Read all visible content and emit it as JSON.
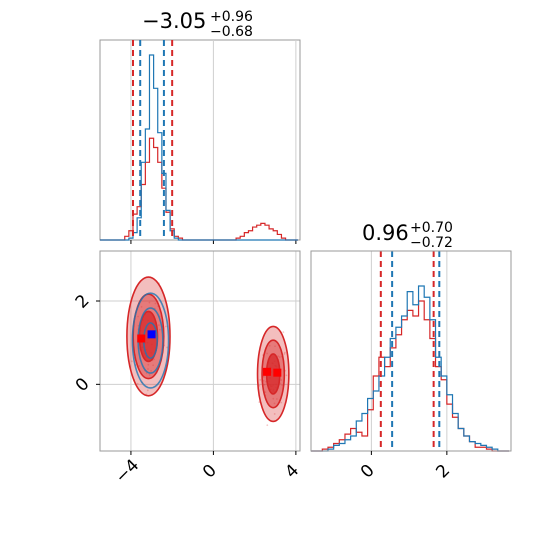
{
  "chart_data": {
    "type": "corner",
    "colors": {
      "red": "#d62728",
      "blue": "#1f77b4"
    },
    "grid": true,
    "titles": [
      {
        "param": "p1",
        "median": "−3.05",
        "plus": "+0.96",
        "minus": "−0.68"
      },
      {
        "param": "p2",
        "median": "0.96",
        "plus": "+0.70",
        "minus": "−0.72"
      }
    ],
    "panels": {
      "hist1": {
        "type": "histogram",
        "xlim": [
          -5.5,
          4.2
        ],
        "quantile_lines_red": [
          -3.9,
          -2.0
        ],
        "quantile_lines_blue": [
          -3.55,
          -2.4
        ],
        "red_series": {
          "bins": [
            -5.5,
            -5.3,
            -5.1,
            -4.9,
            -4.7,
            -4.5,
            -4.3,
            -4.1,
            -3.9,
            -3.7,
            -3.5,
            -3.3,
            -3.1,
            -2.9,
            -2.7,
            -2.5,
            -2.3,
            -2.1,
            -1.9,
            -1.7,
            -1.5,
            -1.3,
            -1.1,
            -0.9,
            -0.7,
            -0.5,
            -0.3,
            -0.1,
            0.1,
            0.3,
            0.5,
            0.7,
            0.9,
            1.1,
            1.3,
            1.5,
            1.7,
            1.9,
            2.1,
            2.3,
            2.5,
            2.7,
            2.9,
            3.1,
            3.3,
            3.5,
            3.7,
            3.9,
            4.1
          ],
          "counts": [
            0,
            0,
            0,
            0,
            0,
            0,
            0.02,
            0.05,
            0.14,
            0.18,
            0.3,
            0.42,
            0.55,
            0.5,
            0.42,
            0.28,
            0.15,
            0.06,
            0.02,
            0.01,
            0,
            0,
            0,
            0,
            0,
            0,
            0,
            0,
            0,
            0,
            0,
            0,
            0,
            0.01,
            0.02,
            0.04,
            0.05,
            0.07,
            0.08,
            0.09,
            0.08,
            0.06,
            0.05,
            0.03,
            0.01,
            0,
            0,
            0
          ]
        },
        "blue_series": {
          "bins": [
            -5.5,
            -5.3,
            -5.1,
            -4.9,
            -4.7,
            -4.5,
            -4.3,
            -4.1,
            -3.9,
            -3.7,
            -3.5,
            -3.3,
            -3.1,
            -2.9,
            -2.7,
            -2.5,
            -2.3,
            -2.1,
            -1.9,
            -1.7,
            -1.5,
            -1.3,
            -1.1,
            -0.9,
            -0.7,
            -0.5,
            -0.3,
            -0.1,
            0.1,
            0.3,
            0.5,
            0.7,
            0.9,
            1.1,
            1.3,
            1.5,
            1.7,
            1.9,
            2.1,
            2.3,
            2.5,
            2.7,
            2.9,
            3.1,
            3.3,
            3.5,
            3.7,
            3.9,
            4.1
          ],
          "counts": [
            0,
            0,
            0,
            0,
            0,
            0,
            0,
            0.01,
            0.04,
            0.12,
            0.42,
            0.6,
            1.0,
            0.82,
            0.58,
            0.36,
            0.16,
            0.05,
            0.01,
            0,
            0,
            0,
            0,
            0,
            0,
            0,
            0,
            0,
            0,
            0,
            0,
            0,
            0,
            0,
            0,
            0,
            0,
            0,
            0,
            0,
            0,
            0,
            0,
            0,
            0,
            0,
            0,
            0
          ]
        }
      },
      "scatter": {
        "type": "contour",
        "xlim": [
          -5.5,
          4.2
        ],
        "ylim": [
          -1.6,
          3.2
        ],
        "xticks": [
          "−4",
          "0",
          "4"
        ],
        "xtick_values": [
          -4,
          0,
          4
        ],
        "yticks": [
          "2",
          "0"
        ],
        "ytick_values": [
          2,
          0
        ],
        "red_points": [
          {
            "x": -3.5,
            "y": 1.1
          },
          {
            "x": 2.6,
            "y": 0.3
          },
          {
            "x": 3.1,
            "y": 0.28
          }
        ],
        "blue_points": [
          {
            "x": -3.0,
            "y": 1.2
          }
        ],
        "red_modes": [
          {
            "cx": -3.15,
            "cy": 1.15,
            "sx": 0.55,
            "sy": 0.75
          },
          {
            "cx": 2.9,
            "cy": 0.25,
            "sx": 0.4,
            "sy": 0.6
          }
        ],
        "blue_mode": {
          "cx": -3.05,
          "cy": 1.05,
          "sx": 0.5,
          "sy": 0.65
        }
      },
      "hist2": {
        "type": "histogram",
        "xlim": [
          -1.6,
          3.7
        ],
        "xticks": [
          "0",
          "2"
        ],
        "xtick_values": [
          0,
          2
        ],
        "quantile_lines_red": [
          0.25,
          1.65
        ],
        "quantile_lines_blue": [
          0.55,
          1.8
        ],
        "red_series": {
          "bins": [
            -1.6,
            -1.45,
            -1.3,
            -1.15,
            -1.0,
            -0.85,
            -0.7,
            -0.55,
            -0.4,
            -0.25,
            -0.1,
            0.05,
            0.2,
            0.35,
            0.5,
            0.65,
            0.8,
            0.95,
            1.1,
            1.25,
            1.4,
            1.55,
            1.7,
            1.85,
            2.0,
            2.15,
            2.3,
            2.45,
            2.6,
            2.75,
            2.9,
            3.05,
            3.2,
            3.35,
            3.5,
            3.65
          ],
          "counts": [
            0,
            0,
            0.01,
            0.02,
            0.04,
            0.06,
            0.09,
            0.12,
            0.1,
            0.08,
            0.22,
            0.4,
            0.5,
            0.45,
            0.55,
            0.62,
            0.7,
            0.75,
            0.72,
            0.8,
            0.7,
            0.6,
            0.45,
            0.38,
            0.25,
            0.18,
            0.12,
            0.08,
            0.05,
            0.02,
            0.02,
            0.01,
            0,
            0,
            0
          ]
        },
        "blue_series": {
          "bins": [
            -1.6,
            -1.45,
            -1.3,
            -1.15,
            -1.0,
            -0.85,
            -0.7,
            -0.55,
            -0.4,
            -0.25,
            -0.1,
            0.05,
            0.2,
            0.35,
            0.5,
            0.65,
            0.8,
            0.95,
            1.1,
            1.25,
            1.4,
            1.55,
            1.7,
            1.85,
            2.0,
            2.15,
            2.3,
            2.45,
            2.6,
            2.75,
            2.9,
            3.05,
            3.2,
            3.35,
            3.5,
            3.65
          ],
          "counts": [
            0,
            0,
            0,
            0.01,
            0.03,
            0.04,
            0.06,
            0.08,
            0.16,
            0.2,
            0.28,
            0.32,
            0.4,
            0.5,
            0.6,
            0.66,
            0.72,
            0.85,
            0.78,
            0.88,
            0.82,
            0.7,
            0.5,
            0.4,
            0.3,
            0.2,
            0.12,
            0.08,
            0.05,
            0.04,
            0.03,
            0.02,
            0.01,
            0,
            0
          ]
        }
      }
    }
  }
}
